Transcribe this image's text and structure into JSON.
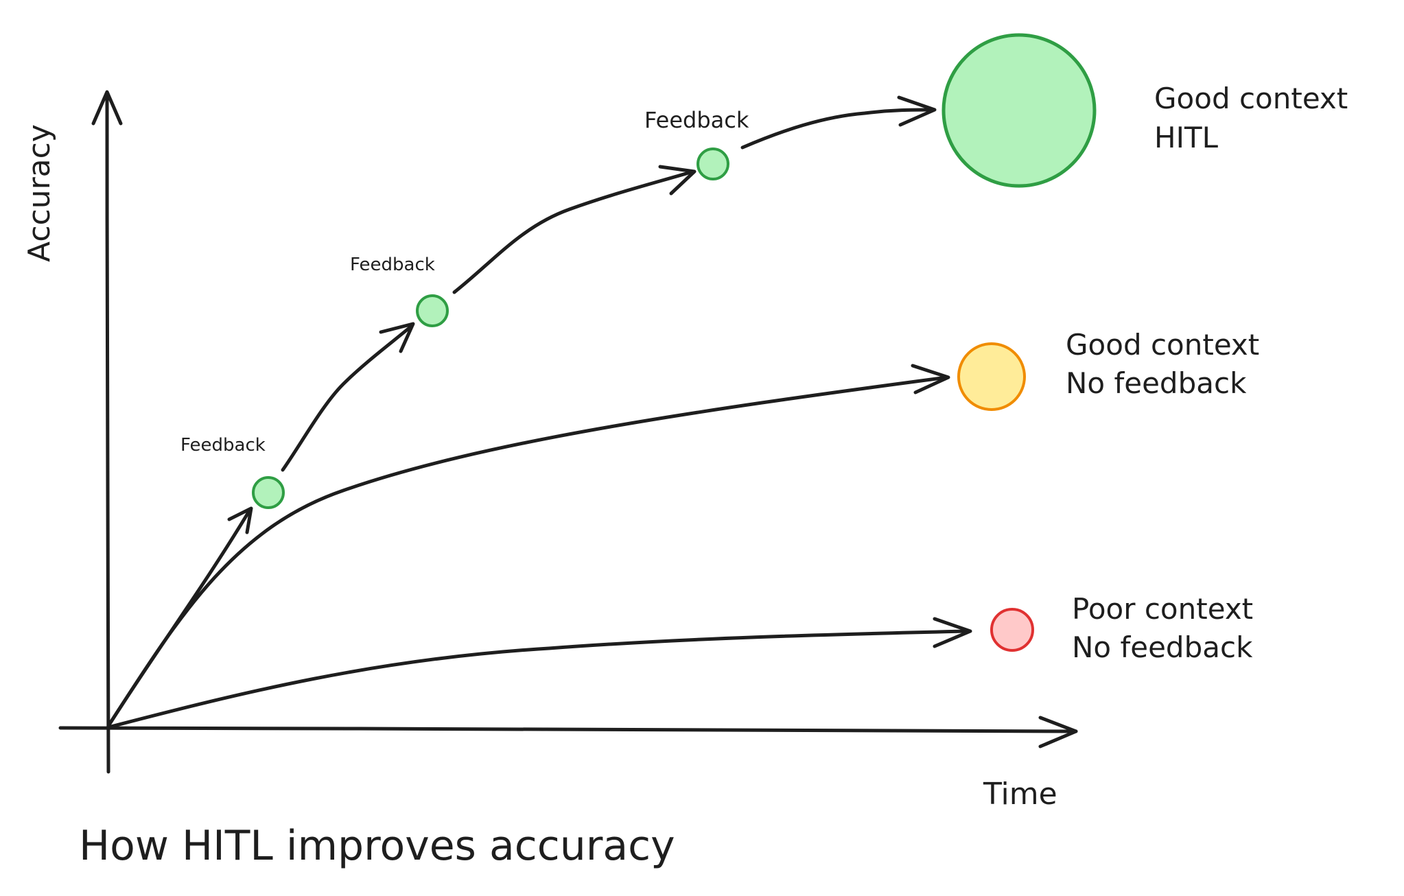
{
  "axes": {
    "y_label": "Accuracy",
    "x_label": "Time"
  },
  "title": "How HITL improves accuracy",
  "feedback_labels": [
    "Feedback",
    "Feedback",
    "Feedback"
  ],
  "outcomes": {
    "hitl": {
      "line1": "Good context",
      "line2": "HITL",
      "fill": "#b2f2bb",
      "stroke": "#2f9e44"
    },
    "no_feedback": {
      "line1": "Good context",
      "line2": "No feedback",
      "fill": "#ffec99",
      "stroke": "#f08c00"
    },
    "poor": {
      "line1": "Poor context",
      "line2": "No feedback",
      "fill": "#ffc9c9",
      "stroke": "#e03131"
    }
  },
  "feedback_point_colors": {
    "fill": "#b2f2bb",
    "stroke": "#2f9e44"
  }
}
